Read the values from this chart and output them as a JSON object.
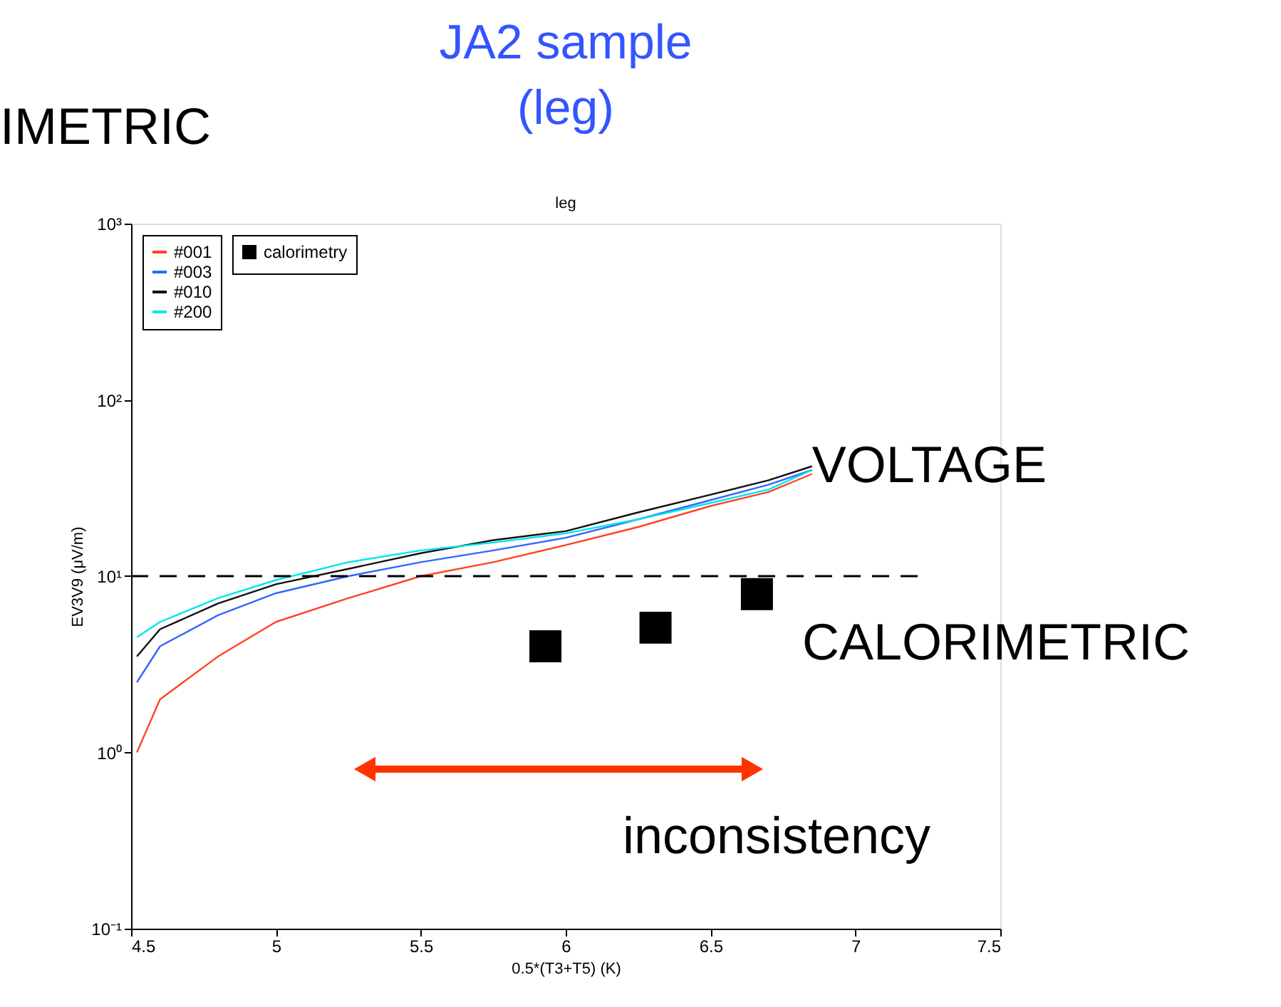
{
  "chart_data": {
    "type": "line",
    "title": "JA2 sample",
    "subtitle": "(leg)",
    "xlabel": "0.5*(T3+T5) (K)",
    "ylabel": "EV3V9 (μV/m)",
    "log": "y",
    "xlim": [
      4.5,
      7.5
    ],
    "xticks": [
      4.5,
      5,
      5.5,
      6,
      6.5,
      7,
      7.5
    ],
    "ylim": [
      0.1,
      1000
    ],
    "yticks": [
      {
        "value": 0.1,
        "label": "10⁻¹"
      },
      {
        "value": 1,
        "label": "10⁰"
      },
      {
        "value": 10,
        "label": "10¹"
      },
      {
        "value": 100,
        "label": "10²"
      },
      {
        "value": 1000,
        "label": "10³"
      }
    ],
    "grid": false,
    "legend": "top left",
    "line_style": "solid",
    "marker": "none",
    "x": [
      4.52,
      4.6,
      4.8,
      5.0,
      5.25,
      5.5,
      5.75,
      6.0,
      6.25,
      6.5,
      6.7,
      6.85
    ],
    "series": [
      {
        "name": "#001",
        "color": "#ff4422",
        "values": [
          1.0,
          2.0,
          3.5,
          5.5,
          7.5,
          10,
          12,
          15,
          19,
          25,
          30,
          38
        ]
      },
      {
        "name": "#003",
        "color": "#3366ff",
        "values": [
          2.5,
          4,
          6,
          8,
          10,
          12,
          14,
          16.5,
          21,
          27,
          33,
          40
        ]
      },
      {
        "name": "#010",
        "color": "#111111",
        "values": [
          3.5,
          5,
          7,
          9,
          11,
          13.5,
          16,
          18,
          23,
          29,
          35,
          42
        ]
      },
      {
        "name": "#200",
        "color": "#00e5ee",
        "values": [
          4.5,
          5.5,
          7.5,
          9.5,
          12,
          14,
          15.5,
          17.5,
          21,
          26,
          31,
          40
        ]
      },
      {
        "name": "calorimetry",
        "type": "scatter",
        "marker": "square",
        "color": "#000000",
        "x": [
          5.93,
          6.31,
          6.66
        ],
        "values": [
          4.0,
          5.1,
          7.9
        ]
      }
    ],
    "ref_lines": [
      {
        "axis": "y",
        "value": 10,
        "label": null,
        "color": "#000000",
        "line_style": "dashed"
      }
    ],
    "annotations": [
      "IMETRIC",
      "leg",
      {
        "text": "VOLTAGE",
        "x": 6.85,
        "y": 42
      },
      "CALORIMETRIC",
      "inconsistency"
    ]
  }
}
